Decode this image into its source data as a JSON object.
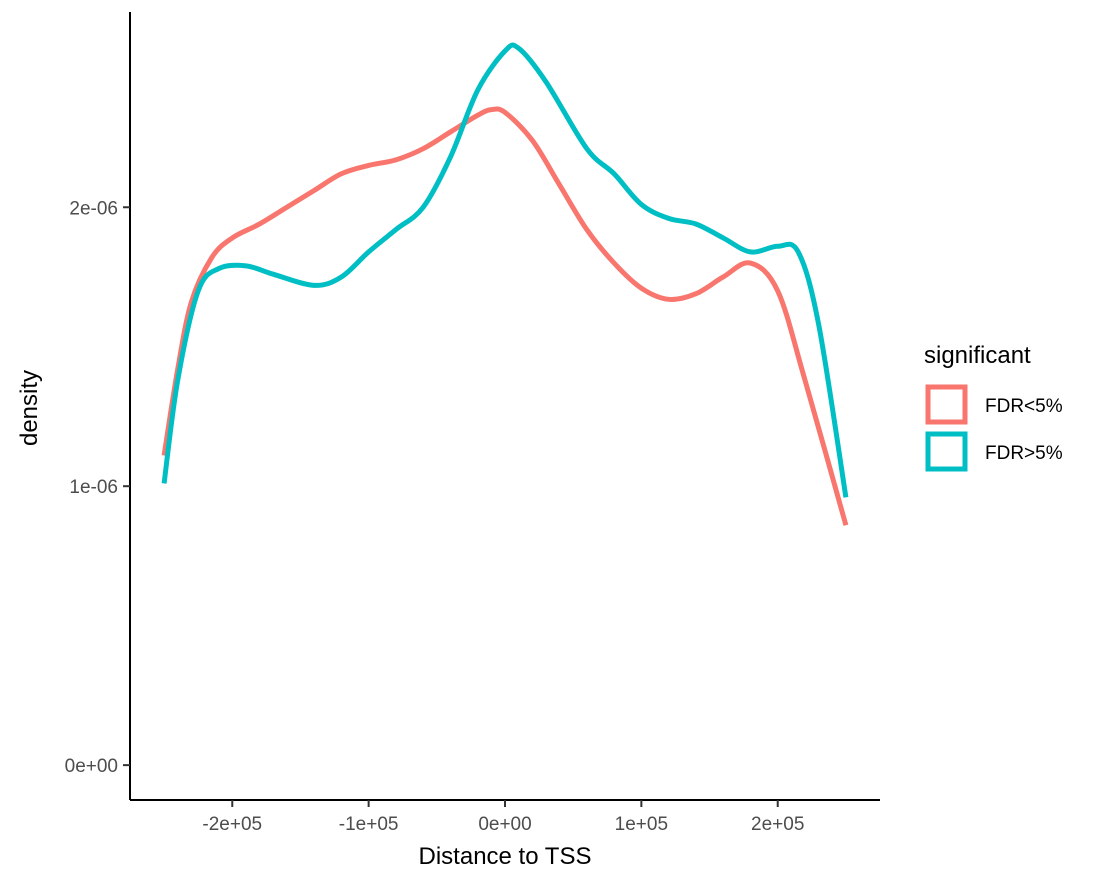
{
  "chart_data": {
    "type": "line",
    "title": "",
    "xlabel": "Distance to TSS",
    "ylabel": "density",
    "xlim": [
      -275000,
      275000
    ],
    "ylim": [
      -1.25e-07,
      2.7e-06
    ],
    "x_ticks": [
      {
        "value": -200000,
        "label": "-2e+05"
      },
      {
        "value": -100000,
        "label": "-1e+05"
      },
      {
        "value": 0,
        "label": "0e+00"
      },
      {
        "value": 100000,
        "label": "1e+05"
      },
      {
        "value": 200000,
        "label": "2e+05"
      }
    ],
    "y_ticks": [
      {
        "value": 0,
        "label": "0e+00"
      },
      {
        "value": 1e-06,
        "label": "1e-06"
      },
      {
        "value": 2e-06,
        "label": "2e-06"
      }
    ],
    "grid": false,
    "legend": {
      "title": "significant",
      "position": "right"
    },
    "series": [
      {
        "name": "FDR<5%",
        "color": "#F8766D",
        "points": [
          [
            -250000,
            1.11e-06
          ],
          [
            -240000,
            1.42e-06
          ],
          [
            -230000,
            1.66e-06
          ],
          [
            -215000,
            1.82e-06
          ],
          [
            -200000,
            1.89e-06
          ],
          [
            -180000,
            1.94e-06
          ],
          [
            -160000,
            2e-06
          ],
          [
            -140000,
            2.06e-06
          ],
          [
            -120000,
            2.12e-06
          ],
          [
            -100000,
            2.15e-06
          ],
          [
            -80000,
            2.17e-06
          ],
          [
            -60000,
            2.21e-06
          ],
          [
            -40000,
            2.27e-06
          ],
          [
            -20000,
            2.33e-06
          ],
          [
            -10000,
            2.35e-06
          ],
          [
            0,
            2.34e-06
          ],
          [
            20000,
            2.24e-06
          ],
          [
            40000,
            2.08e-06
          ],
          [
            60000,
            1.92e-06
          ],
          [
            80000,
            1.8e-06
          ],
          [
            100000,
            1.71e-06
          ],
          [
            120000,
            1.67e-06
          ],
          [
            140000,
            1.69e-06
          ],
          [
            160000,
            1.75e-06
          ],
          [
            180000,
            1.8e-06
          ],
          [
            200000,
            1.7e-06
          ],
          [
            220000,
            1.38e-06
          ],
          [
            250000,
            8.6e-07
          ]
        ]
      },
      {
        "name": "FDR>5%",
        "color": "#00BFC4",
        "points": [
          [
            -250000,
            1.01e-06
          ],
          [
            -240000,
            1.38e-06
          ],
          [
            -225000,
            1.7e-06
          ],
          [
            -210000,
            1.78e-06
          ],
          [
            -190000,
            1.79e-06
          ],
          [
            -170000,
            1.76e-06
          ],
          [
            -140000,
            1.72e-06
          ],
          [
            -120000,
            1.75e-06
          ],
          [
            -100000,
            1.84e-06
          ],
          [
            -80000,
            1.92e-06
          ],
          [
            -60000,
            2e-06
          ],
          [
            -40000,
            2.18e-06
          ],
          [
            -20000,
            2.42e-06
          ],
          [
            0,
            2.56e-06
          ],
          [
            10000,
            2.57e-06
          ],
          [
            30000,
            2.45e-06
          ],
          [
            60000,
            2.21e-06
          ],
          [
            80000,
            2.12e-06
          ],
          [
            100000,
            2.01e-06
          ],
          [
            120000,
            1.96e-06
          ],
          [
            140000,
            1.94e-06
          ],
          [
            160000,
            1.89e-06
          ],
          [
            180000,
            1.84e-06
          ],
          [
            200000,
            1.86e-06
          ],
          [
            215000,
            1.84e-06
          ],
          [
            230000,
            1.58e-06
          ],
          [
            250000,
            9.6e-07
          ]
        ]
      }
    ]
  }
}
